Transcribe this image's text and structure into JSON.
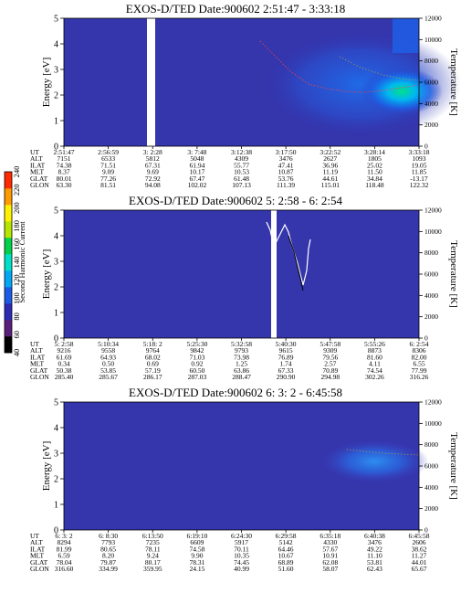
{
  "colors": {
    "background": "#3232a8",
    "stripe": "#4646c4",
    "colorbar": [
      "#000000",
      "#5a1f7a",
      "#2b2bb5",
      "#1c5be6",
      "#00a7f5",
      "#00e0c8",
      "#00d04a",
      "#b6e500",
      "#fff200",
      "#ff9a00",
      "#ff2a00"
    ]
  },
  "colorbar": {
    "label": "Second Harmonic Current",
    "ticks": [
      "40",
      "60",
      "80",
      "100",
      "120",
      "140",
      "160",
      "180",
      "200",
      "220",
      "240"
    ]
  },
  "chart_data": [
    {
      "type": "heatmap",
      "title": "EXOS-D/TED   Date:900602  2:51:47 - 3:33:18",
      "ylabel": "Energy [eV]",
      "y2label": "Temperature [K]",
      "ylim": [
        0,
        5
      ],
      "y2lim": [
        0,
        12000
      ],
      "yticks": [
        "0",
        "1",
        "2",
        "3",
        "4",
        "5"
      ],
      "y2ticks": [
        "0",
        "2000",
        "4000",
        "6000",
        "8000",
        "10000",
        "12000"
      ],
      "xlabels": [
        "UT",
        "ALT",
        "ILAT",
        "MLT",
        "GLAT",
        "GLON"
      ],
      "columns": [
        [
          "2:51:47",
          "7151",
          "74.38",
          "8.37",
          "80.01",
          "63.30"
        ],
        [
          "2:56:59",
          "6533",
          "71.51",
          "9.09",
          "77.26",
          "81.51"
        ],
        [
          "3: 2:28",
          "5812",
          "67.31",
          "9.69",
          "72.92",
          "94.08"
        ],
        [
          "3: 7:48",
          "5048",
          "61.94",
          "10.17",
          "67.47",
          "102.02"
        ],
        [
          "3:12:38",
          "4309",
          "55.77",
          "10.53",
          "61.48",
          "107.13"
        ],
        [
          "3:17:50",
          "3476",
          "47.41",
          "10.87",
          "53.76",
          "111.39"
        ],
        [
          "3:22:52",
          "2627",
          "36.96",
          "11.19",
          "44.61",
          "115.01"
        ],
        [
          "3:28:14",
          "1805",
          "25.02",
          "11.50",
          "34.84",
          "118.48"
        ],
        [
          "3:33:18",
          "1093",
          "19.05",
          "11.85",
          "-13.17",
          "122.32"
        ]
      ]
    },
    {
      "type": "heatmap",
      "title": "EXOS-D/TED   Date:900602  5: 2:58 - 6: 2:54",
      "ylabel": "Energy [eV]",
      "y2label": "Temperature [K]",
      "ylim": [
        0,
        5
      ],
      "y2lim": [
        0,
        12000
      ],
      "yticks": [
        "0",
        "1",
        "2",
        "3",
        "4",
        "5"
      ],
      "y2ticks": [
        "0",
        "2000",
        "4000",
        "6000",
        "8000",
        "10000",
        "12000"
      ],
      "xlabels": [
        "UT",
        "ALT",
        "ILAT",
        "MLT",
        "GLAT",
        "GLON"
      ],
      "columns": [
        [
          "5: 2:58",
          "9216",
          "61.69",
          "0.34",
          "50.38",
          "285.40"
        ],
        [
          "5:10:34",
          "9558",
          "64.93",
          "0.50",
          "53.85",
          "285.67"
        ],
        [
          "5:18: 2",
          "9764",
          "68.02",
          "0.69",
          "57.19",
          "286.17"
        ],
        [
          "5:25:30",
          "9842",
          "71.03",
          "0.92",
          "60.50",
          "287.03"
        ],
        [
          "5:32:58",
          "9793",
          "73.98",
          "1.25",
          "63.86",
          "288.47"
        ],
        [
          "5:40:30",
          "9615",
          "76.89",
          "1.74",
          "67.33",
          "290.90"
        ],
        [
          "5:47:58",
          "9309",
          "79.56",
          "2.57",
          "70.89",
          "294.98"
        ],
        [
          "5:55:26",
          "8873",
          "81.60",
          "4.11",
          "74.54",
          "302.26"
        ],
        [
          "6: 2:54",
          "8306",
          "82.00",
          "6.55",
          "77.99",
          "316.26"
        ]
      ]
    },
    {
      "type": "heatmap",
      "title": "EXOS-D/TED   Date:900602  6: 3: 2 - 6:45:58",
      "ylabel": "Energy [eV]",
      "y2label": "Temperature [K]",
      "ylim": [
        0,
        5
      ],
      "y2lim": [
        0,
        12000
      ],
      "yticks": [
        "0",
        "1",
        "2",
        "3",
        "4",
        "5"
      ],
      "y2ticks": [
        "0",
        "2000",
        "4000",
        "6000",
        "8000",
        "10000",
        "12000"
      ],
      "xlabels": [
        "UT",
        "ALT",
        "ILAT",
        "MLT",
        "GLAT",
        "GLON"
      ],
      "columns": [
        [
          "6: 3: 2",
          "8294",
          "81.99",
          "6.59",
          "78.04",
          "316.60"
        ],
        [
          "6: 8:30",
          "7793",
          "80.65",
          "8.20",
          "79.87",
          "334.99"
        ],
        [
          "6:13:50",
          "7235",
          "78.11",
          "9.24",
          "80.17",
          "359.95"
        ],
        [
          "6:19:10",
          "6609",
          "74.58",
          "9.90",
          "78.31",
          "24.15"
        ],
        [
          "6:24:30",
          "5917",
          "70.11",
          "10.35",
          "74.45",
          "40.99"
        ],
        [
          "6:29:58",
          "5142",
          "64.46",
          "10.67",
          "68.89",
          "51.60"
        ],
        [
          "6:35:18",
          "4330",
          "57.67",
          "10.91",
          "62.08",
          "58.07"
        ],
        [
          "6:40:38",
          "3476",
          "49.22",
          "11.10",
          "53.81",
          "62.43"
        ],
        [
          "6:45:58",
          "2606",
          "38.62",
          "11.27",
          "44.01",
          "65.67"
        ]
      ]
    }
  ]
}
